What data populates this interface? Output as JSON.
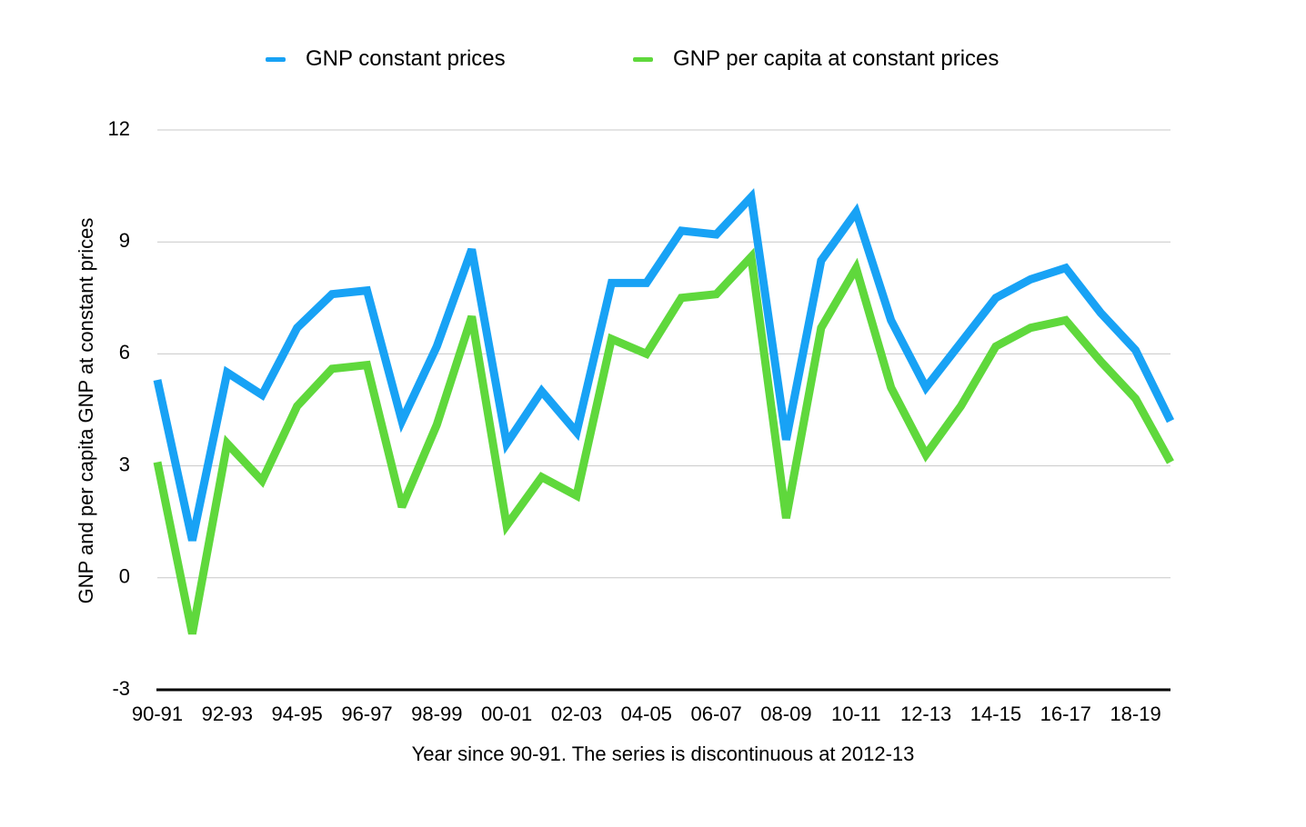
{
  "chart_data": {
    "type": "line",
    "xlabel": "Year since 90-91.  The series is discontinuous at 2012-13",
    "ylabel": "GNP and per capita GNP at constant prices",
    "ylim": [
      -3,
      12
    ],
    "yticks": [
      "12",
      "9",
      "6",
      "3",
      "0",
      "-3"
    ],
    "grid": true,
    "legend_position": "top",
    "x": [
      "90-91",
      "91-92",
      "92-93",
      "93-94",
      "94-95",
      "95-96",
      "96-97",
      "97-98",
      "98-99",
      "99-00",
      "00-01",
      "01-02",
      "02-03",
      "03-04",
      "04-05",
      "05-06",
      "06-07",
      "07-08",
      "08-09",
      "09-10",
      "10-11",
      "11-12",
      "12-13",
      "13-14",
      "14-15",
      "15-16",
      "16-17",
      "17-18",
      "18-19",
      "19-20"
    ],
    "xtick_labels": [
      "90-91",
      "92-93",
      "94-95",
      "96-97",
      "98-99",
      "00-01",
      "02-03",
      "04-05",
      "06-07",
      "08-09",
      "10-11",
      "12-13",
      "14-15",
      "16-17",
      "18-19"
    ],
    "series": [
      {
        "name": "GNP constant prices",
        "color": "#18a2f5",
        "values": [
          5.3,
          1.0,
          5.5,
          4.9,
          6.7,
          7.6,
          7.7,
          4.2,
          6.2,
          8.8,
          3.6,
          5.0,
          3.9,
          7.9,
          7.9,
          9.3,
          9.2,
          10.2,
          3.7,
          8.5,
          9.8,
          6.9,
          5.1,
          6.3,
          7.5,
          8.0,
          8.3,
          7.1,
          6.1,
          4.2
        ]
      },
      {
        "name": "GNP per capita at constant prices",
        "color": "#5fd83c",
        "values": [
          3.1,
          -1.5,
          3.6,
          2.6,
          4.6,
          5.6,
          5.7,
          1.9,
          4.1,
          7.0,
          1.4,
          2.7,
          2.2,
          6.4,
          6.0,
          7.5,
          7.6,
          8.6,
          1.6,
          6.7,
          8.3,
          5.1,
          3.3,
          4.6,
          6.2,
          6.7,
          6.9,
          5.8,
          4.8,
          3.1
        ]
      }
    ]
  }
}
